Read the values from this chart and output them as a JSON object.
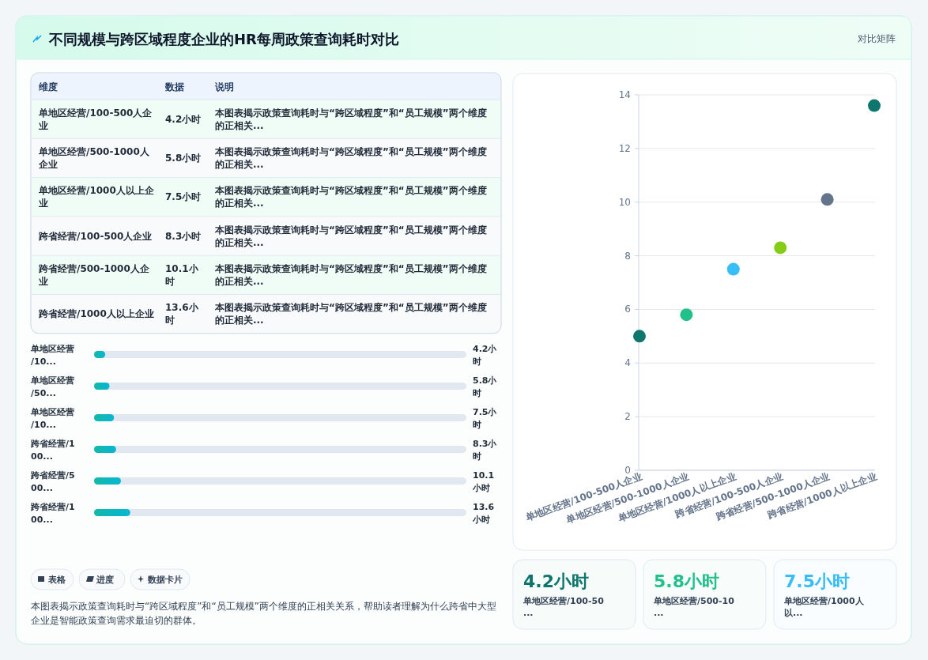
{
  "chart_data": [
    {
      "type": "other",
      "title": "不同规模与跨区域程度企业的HR每周政策查询耗时对比",
      "subtitle": "对比矩阵",
      "annotations": [
        "维度",
        "数据",
        "说明",
        "单地区经营/100-500人企业",
        "4.2小时",
        "本图表揭示政策查询耗时与“跨区域程度”和“员工规模”两个维度的正相关...",
        "单地区经营/500-1000人企业",
        "5.8小时",
        "本图表揭示政策查询耗时与“跨区域程度”和“员工规模”两个维度的正相关...",
        "单地区经营/1000人以上企业",
        "7.5小时",
        "本图表揭示政策查询耗时与“跨区域程度”和“员工规模”两个维度的正相关...",
        "跨省经营/100-500人企业",
        "8.3小时",
        "本图表揭示政策查询耗时与“跨区域程度”和“员工规模”两个维度的正相关...",
        "跨省经营/500-1000人企业",
        "10.1小时",
        "本图表揭示政策查询耗时与“跨区域程度”和“员工规模”两个维度的正相关...",
        "跨省经营/1000人以上企业",
        "13.6小时",
        "本图表揭示政策查询耗时与“跨区域程度”和“员工规模”两个维度的正相关..."
      ]
    },
    {
      "type": "bar",
      "orientation": "horizontal",
      "categories": [
        "单地区经营/10...",
        "单地区经营/50...",
        "单地区经营/10...",
        "跨省经营/100...",
        "跨省经营/500...",
        "跨省经营/100..."
      ],
      "values": [
        4.2,
        5.8,
        7.5,
        8.3,
        10.1,
        13.6
      ],
      "value_labels": [
        "4.2小时",
        "5.8小时",
        "7.5小时",
        "8.3小时",
        "10.1小时",
        "13.6小时"
      ],
      "color": "#14b8a6",
      "xlim": [
        0,
        140
      ],
      "tick_labels": false
    },
    {
      "type": "scatter",
      "categories": [
        "单地区经营/100-500人企业",
        "单地区经营/500-1000人企业",
        "单地区经营/1000人以上企业",
        "跨省经营/100-500人企业",
        "跨省经营/500-1000人企业",
        "跨省经营/1000人以上企业"
      ],
      "values": [
        5.0,
        5.8,
        7.5,
        8.3,
        10.1,
        13.6
      ],
      "colors": [
        "#0f766e",
        "#22c08a",
        "#38bdf8",
        "#84cc16",
        "#64748b",
        "#0f766e"
      ],
      "ylim": [
        0,
        14
      ],
      "yticks": [
        0,
        2,
        4,
        6,
        8,
        10,
        12,
        14
      ],
      "grid": "y",
      "marker": "circle"
    },
    {
      "type": "other",
      "categories": [
        "单地区经营/100-50...",
        "单地区经营/500-10...",
        "单地区经营/1000人以..."
      ],
      "values": [
        4.2,
        5.8,
        7.5
      ],
      "value_labels": [
        "4.2小时",
        "5.8小时",
        "7.5小时"
      ],
      "colors": [
        "#0f766e",
        "#22c08a",
        "#38bdf8"
      ],
      "annotations": [
        "表格",
        "进度",
        "数据卡片",
        "本图表揭示政策查询耗时与“跨区域程度”和“员工规模”两个维度的正相关关系，帮助读者理解为什么跨省中大型企业是智能政策查询需求最迫切的群体。"
      ]
    }
  ]
}
